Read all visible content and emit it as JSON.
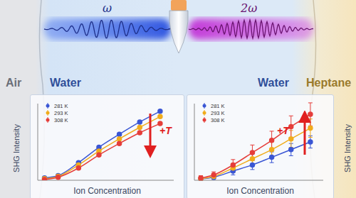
{
  "labels": {
    "air": "Air",
    "water_left": "Water",
    "water_right": "Water",
    "heptane": "Heptane",
    "omega": "ω",
    "two_omega": "2ω"
  },
  "chart_data": [
    {
      "type": "line",
      "x_label": "Ion Concentration",
      "y_label": "SHG Intensity",
      "annotation": "+T",
      "legend": "upper left",
      "tick_labels": false,
      "xlim": [
        0,
        10
      ],
      "ylim": [
        0,
        10
      ],
      "x": [
        0.5,
        1.5,
        3,
        4.5,
        6,
        7.5,
        9
      ],
      "series": [
        {
          "name": "281 K",
          "color": "#3a56d4",
          "marker": "circle",
          "values": [
            0.3,
            0.6,
            2.3,
            4.3,
            6.0,
            7.6,
            9.0
          ]
        },
        {
          "name": "293 K",
          "color": "#f0ac1c",
          "marker": "circle",
          "values": [
            0.2,
            0.5,
            2.0,
            3.8,
            5.4,
            6.9,
            8.3
          ]
        },
        {
          "name": "308 K",
          "color": "#e53e3a",
          "marker": "circle",
          "values": [
            0.1,
            0.4,
            1.6,
            3.3,
            4.8,
            6.2,
            7.4
          ]
        }
      ]
    },
    {
      "type": "line",
      "x_label": "Ion Concentration",
      "y_label": "SHG Intensity",
      "annotation": "+T",
      "legend": "upper left",
      "tick_labels": false,
      "xlim": [
        0,
        10
      ],
      "ylim": [
        0,
        10
      ],
      "x": [
        0.5,
        1.5,
        3,
        4.5,
        6,
        7.5,
        9
      ],
      "series": [
        {
          "name": "281 K",
          "color": "#3a56d4",
          "marker": "circle",
          "values": [
            0.2,
            0.4,
            1.2,
            2.0,
            3.0,
            4.0,
            5.0
          ],
          "errors": [
            0.2,
            0.3,
            0.5,
            0.6,
            0.7,
            0.8,
            0.8
          ]
        },
        {
          "name": "293 K",
          "color": "#f0ac1c",
          "marker": "circle",
          "values": [
            0.2,
            0.5,
            1.6,
            2.8,
            4.0,
            5.4,
            6.8
          ],
          "errors": [
            0.2,
            0.3,
            0.6,
            0.8,
            1.0,
            1.1,
            1.2
          ]
        },
        {
          "name": "308 K",
          "color": "#e53e3a",
          "marker": "circle",
          "values": [
            0.3,
            0.7,
            2.0,
            3.6,
            5.2,
            7.0,
            8.6
          ],
          "errors": [
            0.3,
            0.4,
            0.7,
            1.0,
            1.2,
            1.4,
            1.5
          ]
        }
      ]
    }
  ]
}
